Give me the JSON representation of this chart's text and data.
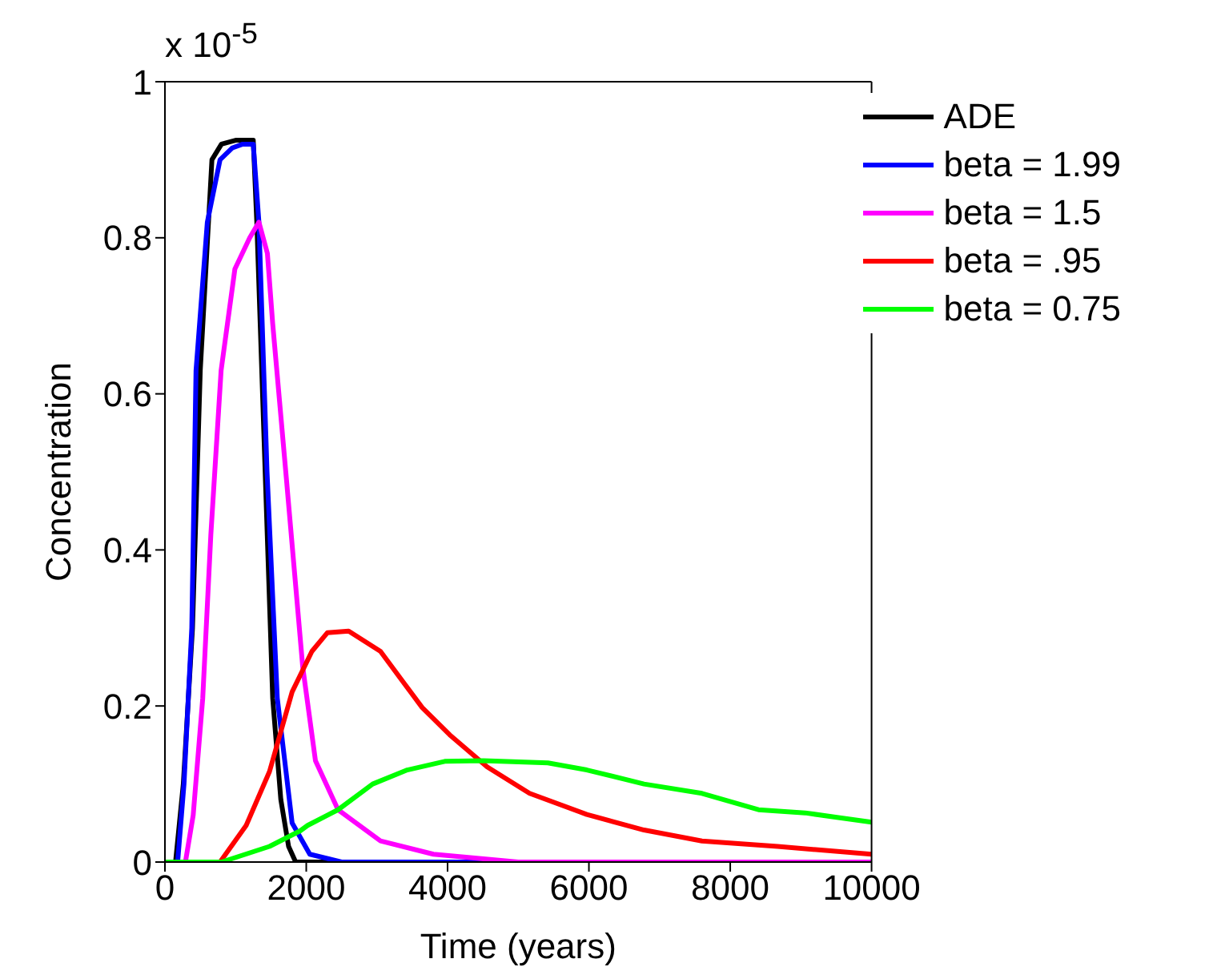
{
  "chart_data": {
    "type": "line",
    "xlabel": "Time (years)",
    "ylabel": "Concentration",
    "annotations": [
      "x 10$^{-5}$"
    ],
    "xlim": [
      0,
      10000
    ],
    "xticks": [
      0,
      2000,
      4000,
      6000,
      8000,
      10000
    ],
    "ylim": [
      0,
      1
    ],
    "yticks": [
      0,
      0.2,
      0.4,
      0.6,
      0.8,
      1
    ],
    "grid": false,
    "legend": "top right",
    "marker": "none",
    "line_style": "solid",
    "series": [
      {
        "name": "ADE",
        "color": "#000000",
        "x": [
          0,
          150,
          260,
          390,
          500,
          665,
          800,
          1000,
          1250,
          1300,
          1400,
          1525,
          1640,
          1750,
          1850,
          2500,
          10000
        ],
        "values": [
          0,
          0,
          0.1,
          0.3,
          0.63,
          0.9,
          0.92,
          0.925,
          0.925,
          0.82,
          0.55,
          0.21,
          0.08,
          0.02,
          0,
          0,
          0
        ]
      },
      {
        "name": "beta = 1.99",
        "color": "#0000ff",
        "x": [
          0,
          180,
          270,
          380,
          440,
          600,
          780,
          950,
          1100,
          1250,
          1330,
          1445,
          1590,
          1800,
          2050,
          2500,
          10000
        ],
        "values": [
          0,
          0,
          0.1,
          0.3,
          0.63,
          0.82,
          0.9,
          0.915,
          0.92,
          0.92,
          0.82,
          0.5,
          0.21,
          0.05,
          0.01,
          0,
          0
        ]
      },
      {
        "name": "beta = 1.5",
        "color": "#ff00ff",
        "x": [
          0,
          290,
          400,
          535,
          650,
          795,
          990,
          1200,
          1330,
          1450,
          1525,
          1720,
          1950,
          2130,
          2450,
          3050,
          3800,
          5000,
          10000
        ],
        "values": [
          0,
          0,
          0.06,
          0.21,
          0.42,
          0.63,
          0.76,
          0.8,
          0.82,
          0.78,
          0.69,
          0.49,
          0.25,
          0.13,
          0.067,
          0.027,
          0.01,
          0,
          0
        ]
      },
      {
        "name": "beta = .95",
        "color": "#ff0000",
        "x": [
          0,
          780,
          1150,
          1480,
          1800,
          2080,
          2300,
          2600,
          3050,
          3640,
          4030,
          4560,
          5160,
          5970,
          6780,
          7600,
          8670,
          10000
        ],
        "values": [
          0,
          0,
          0.047,
          0.116,
          0.218,
          0.27,
          0.294,
          0.296,
          0.27,
          0.198,
          0.163,
          0.122,
          0.088,
          0.061,
          0.041,
          0.027,
          0.02,
          0.01
        ]
      },
      {
        "name": "beta = 0.75",
        "color": "#00ff00",
        "x": [
          0,
          800,
          1480,
          1915,
          2020,
          2450,
          2940,
          3430,
          3960,
          4510,
          5420,
          5970,
          6780,
          7600,
          8400,
          9060,
          10000
        ],
        "values": [
          0,
          0,
          0.02,
          0.04,
          0.047,
          0.067,
          0.1,
          0.118,
          0.129,
          0.13,
          0.127,
          0.118,
          0.1,
          0.088,
          0.067,
          0.063,
          0.051
        ]
      }
    ]
  }
}
